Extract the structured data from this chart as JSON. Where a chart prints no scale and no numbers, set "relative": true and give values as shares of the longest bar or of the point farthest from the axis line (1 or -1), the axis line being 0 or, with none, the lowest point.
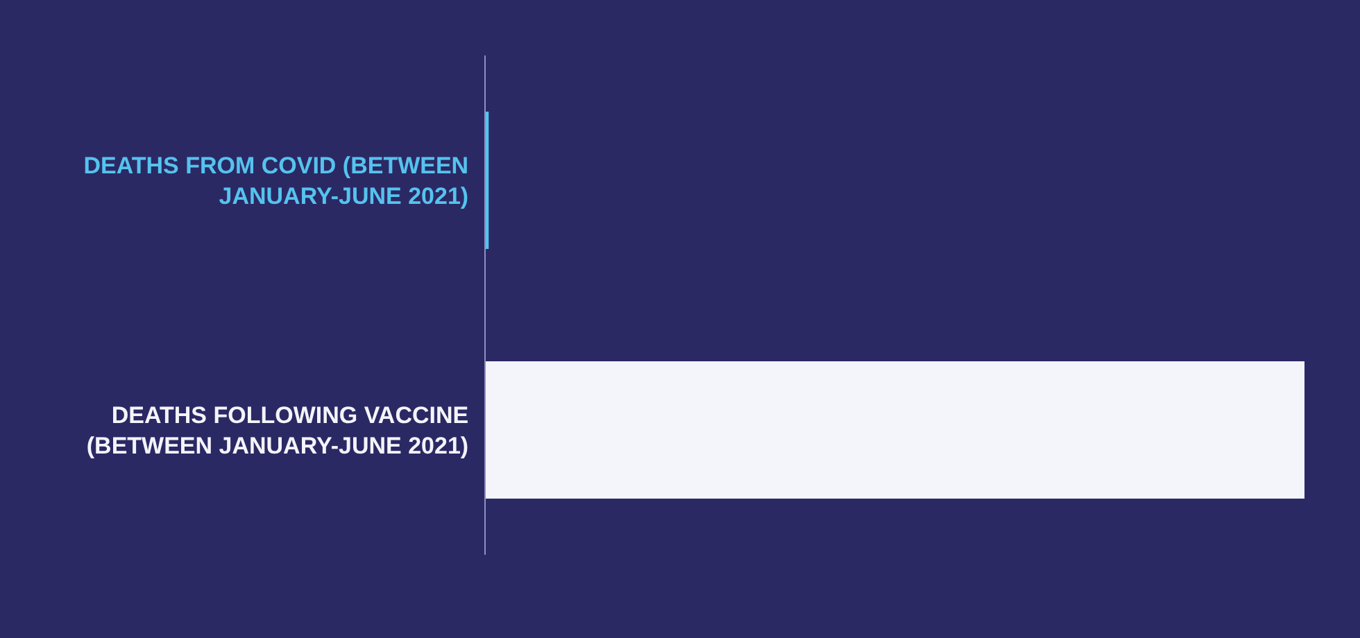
{
  "chart_data": {
    "type": "bar",
    "orientation": "horizontal",
    "relative": true,
    "categories": [
      "DEATHS FROM COVID (BETWEEN JANUARY-JUNE 2021)",
      "DEATHS FOLLOWING VACCINE (BETWEEN JANUARY-JUNE 2021)"
    ],
    "values": [
      0.00365,
      1
    ],
    "colors": [
      "#55c3ee",
      "#f4f4fb"
    ],
    "tick_labels": "y"
  }
}
